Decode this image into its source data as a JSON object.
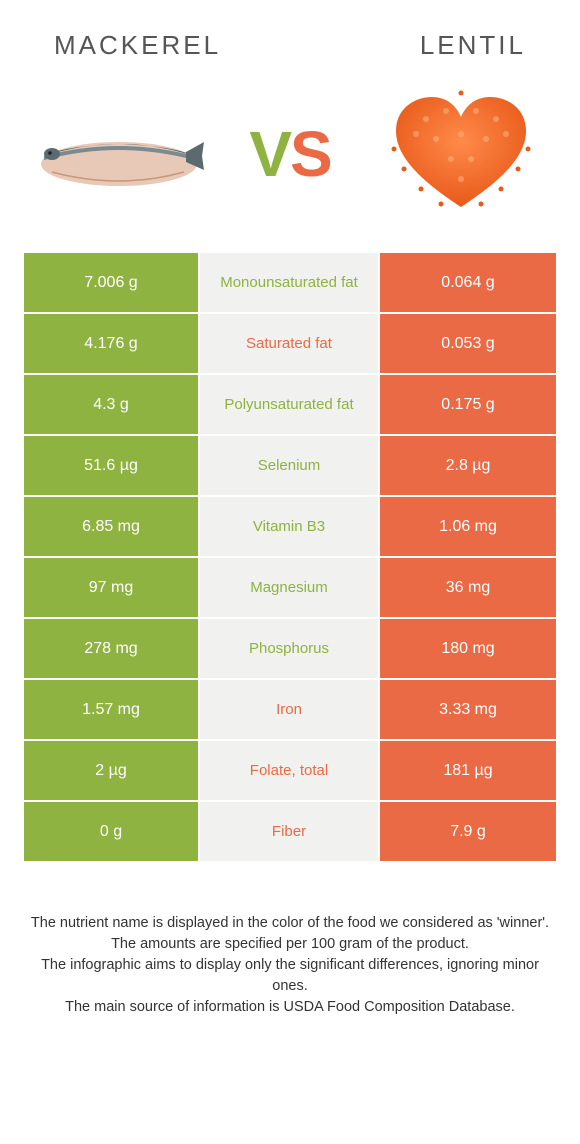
{
  "header": {
    "left": "Mackerel",
    "right": "Lentil"
  },
  "vs": {
    "v": "V",
    "s": "S"
  },
  "colors": {
    "green": "#8eb340",
    "orange": "#ea6a46",
    "mid_bg": "#f1f1ef"
  },
  "rows": [
    {
      "left": "7.006 g",
      "label": "Monounsaturated fat",
      "right": "0.064 g",
      "winner": "green"
    },
    {
      "left": "4.176 g",
      "label": "Saturated fat",
      "right": "0.053 g",
      "winner": "orange"
    },
    {
      "left": "4.3 g",
      "label": "Polyunsaturated fat",
      "right": "0.175 g",
      "winner": "green"
    },
    {
      "left": "51.6 µg",
      "label": "Selenium",
      "right": "2.8 µg",
      "winner": "green"
    },
    {
      "left": "6.85 mg",
      "label": "Vitamin B3",
      "right": "1.06 mg",
      "winner": "green"
    },
    {
      "left": "97 mg",
      "label": "Magnesium",
      "right": "36 mg",
      "winner": "green"
    },
    {
      "left": "278 mg",
      "label": "Phosphorus",
      "right": "180 mg",
      "winner": "green"
    },
    {
      "left": "1.57 mg",
      "label": "Iron",
      "right": "3.33 mg",
      "winner": "orange"
    },
    {
      "left": "2 µg",
      "label": "Folate, total",
      "right": "181 µg",
      "winner": "orange"
    },
    {
      "left": "0 g",
      "label": "Fiber",
      "right": "7.9 g",
      "winner": "orange"
    }
  ],
  "footnotes": [
    "The nutrient name is displayed in the color of the food we considered as 'winner'.",
    "The amounts are specified per 100 gram of the product.",
    "The infographic aims to display only the significant differences, ignoring minor ones.",
    "The main source of information is USDA Food Composition Database."
  ]
}
